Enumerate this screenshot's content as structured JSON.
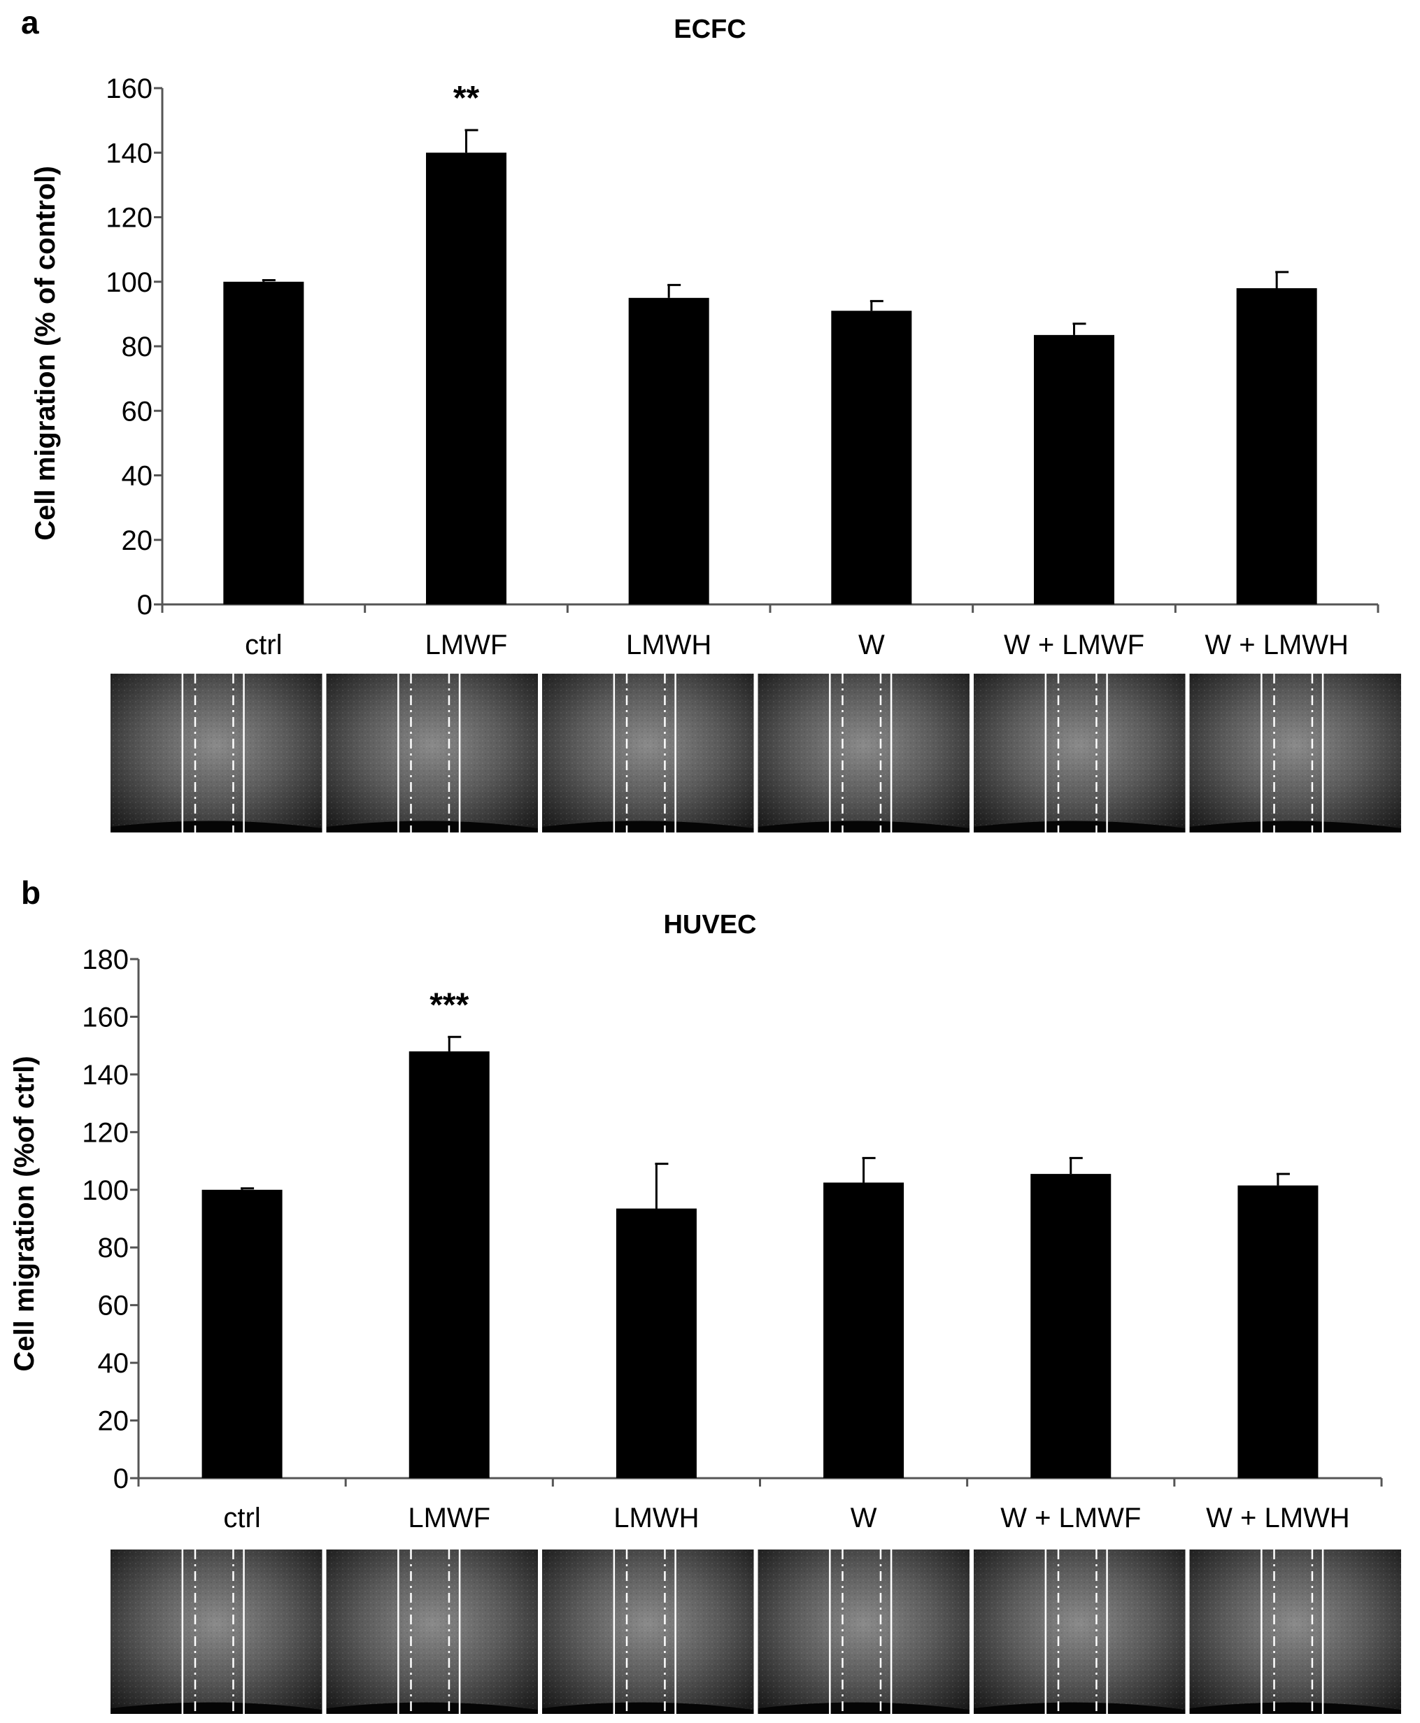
{
  "figure": {
    "panels": [
      {
        "letter": "a"
      },
      {
        "letter": "b"
      }
    ]
  },
  "chart_data": [
    {
      "type": "bar",
      "title": "ECFC",
      "xlabel": "",
      "ylabel": "Cell migration (% of control)",
      "ylim": [
        0,
        160
      ],
      "yticks": [
        0,
        20,
        40,
        60,
        80,
        100,
        120,
        140,
        160
      ],
      "categories": [
        "ctrl",
        "LMWF",
        "LMWH",
        "W",
        "W + LMWF",
        "W + LMWH"
      ],
      "values": [
        100,
        140,
        95,
        91,
        83.5,
        98
      ],
      "errors": [
        0.5,
        7,
        4,
        3,
        3.5,
        5
      ],
      "annotations": [
        {
          "category": "LMWF",
          "text": "**"
        }
      ],
      "grid": false,
      "bar_color": "#000000",
      "micrographs": {
        "count": 6,
        "description_visible": false
      }
    },
    {
      "type": "bar",
      "title": "HUVEC",
      "xlabel": "",
      "ylabel": "Cell migration (%of ctrl)",
      "ylim": [
        0,
        180
      ],
      "yticks": [
        0,
        20,
        40,
        60,
        80,
        100,
        120,
        140,
        160,
        180
      ],
      "categories": [
        "ctrl",
        "LMWF",
        "LMWH",
        "W",
        "W + LMWF",
        "W + LMWH"
      ],
      "values": [
        100,
        148,
        93.5,
        102.5,
        105.5,
        101.5
      ],
      "errors": [
        0.5,
        5,
        15.5,
        8.5,
        5.5,
        4
      ],
      "annotations": [
        {
          "category": "LMWF",
          "text": "***"
        }
      ],
      "grid": false,
      "bar_color": "#000000",
      "micrographs": {
        "count": 6,
        "description_visible": false
      }
    }
  ]
}
